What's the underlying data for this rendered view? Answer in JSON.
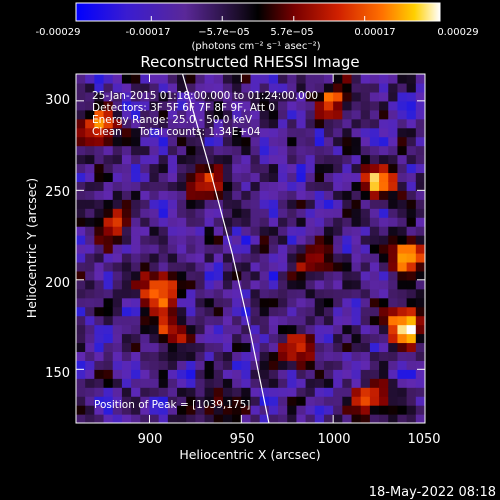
{
  "chart_data": {
    "type": "heatmap",
    "title": "Reconstructed RHESSI Image",
    "xlabel": "Heliocentric X (arcsec)",
    "ylabel": "Heliocentric Y (arcsec)",
    "xlim": [
      860,
      1050
    ],
    "ylim": [
      120,
      315
    ],
    "x_ticks": [
      "900",
      "950",
      "1000",
      "1050"
    ],
    "y_ticks": [
      "150",
      "200",
      "250",
      "300"
    ],
    "x_tick_values": [
      900,
      950,
      1000,
      1050
    ],
    "y_tick_values": [
      150,
      200,
      250,
      300
    ],
    "colorbar": {
      "range": [
        -0.00029,
        0.00029
      ],
      "tick_labels": [
        "-0.00029",
        "-0.00017",
        "−5.7e−05",
        "5.7e−05",
        "0.00017",
        "0.00029"
      ],
      "tick_values": [
        -0.00029,
        -0.00017,
        -5.7e-05,
        5.7e-05,
        0.00017,
        0.00029
      ],
      "units_label": "(photons cm⁻² s⁻¹ asec⁻²)"
    },
    "info_lines": [
      "25-Jan-2015 01:18:00.000 to 01:24:00.000",
      "Detectors: 3F 5F 6F 7F 8F 9F, Att 0",
      "Energy Range: 25.0 - 50.0 keV",
      "Clean     Total counts: 1.34E+04"
    ],
    "peak_label": "Position of Peak = [1039,175]",
    "peak_position": [
      1039,
      175
    ],
    "bright_regions": [
      {
        "x": 1039,
        "y": 175,
        "intensity": 1.0
      },
      {
        "x": 1040,
        "y": 215,
        "intensity": 0.85
      },
      {
        "x": 1025,
        "y": 255,
        "intensity": 0.75
      },
      {
        "x": 905,
        "y": 195,
        "intensity": 0.8
      },
      {
        "x": 910,
        "y": 172,
        "intensity": 0.6
      },
      {
        "x": 872,
        "y": 285,
        "intensity": 0.7
      },
      {
        "x": 878,
        "y": 232,
        "intensity": 0.55
      },
      {
        "x": 1000,
        "y": 300,
        "intensity": 0.6
      },
      {
        "x": 1020,
        "y": 132,
        "intensity": 0.6
      },
      {
        "x": 930,
        "y": 255,
        "intensity": 0.55
      },
      {
        "x": 990,
        "y": 210,
        "intensity": 0.5
      },
      {
        "x": 980,
        "y": 160,
        "intensity": 0.5
      },
      {
        "x": 935,
        "y": 130,
        "intensity": 0.45
      }
    ],
    "limb": [
      [
        965,
        120
      ],
      [
        955,
        170
      ],
      [
        945,
        215
      ],
      [
        932,
        265
      ],
      [
        918,
        315
      ]
    ],
    "grid": false
  },
  "footer": {
    "timestamp": "18-May-2022 08:18"
  },
  "colors": {
    "background": "#000000",
    "text": "#ffffff",
    "limb": "#ffffff",
    "colormap": [
      "#0000ff",
      "#3020d8",
      "#6028b0",
      "#401a60",
      "#000000",
      "#800000",
      "#c82000",
      "#ff6000",
      "#ffc000",
      "#ffffff"
    ]
  }
}
